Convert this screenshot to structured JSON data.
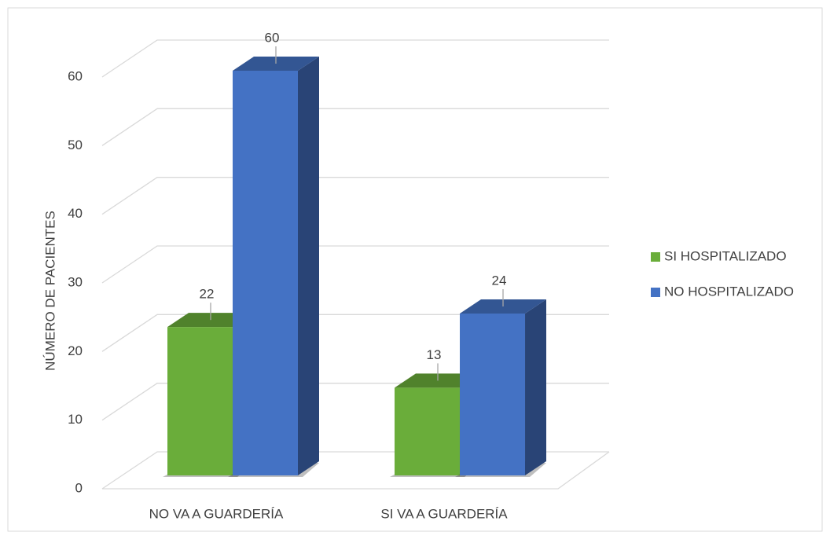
{
  "chart_data": {
    "type": "bar3d",
    "y_axis_label": "NÚMERO DE PACIENTES",
    "categories": [
      "NO VA A GUARDERÍA",
      "SI VA A GUARDERÍA"
    ],
    "series": [
      {
        "name": "SI HOSPITALIZADO",
        "color": "#6aad3a",
        "values": [
          22,
          13
        ]
      },
      {
        "name": "NO HOSPITALIZADO",
        "color": "#4472c4",
        "values": [
          60,
          24
        ]
      }
    ],
    "ylim": [
      0,
      60
    ],
    "yticks": [
      0,
      10,
      20,
      30,
      40,
      50,
      60
    ],
    "grid": true,
    "legend": "right"
  }
}
